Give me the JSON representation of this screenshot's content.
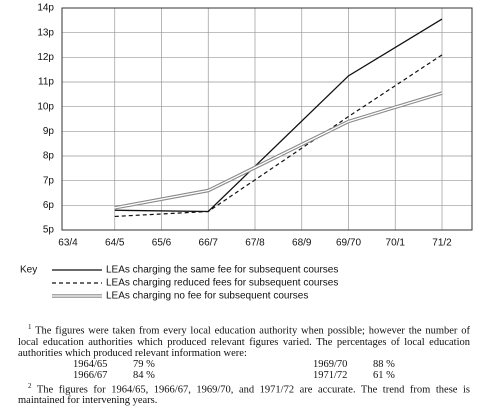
{
  "chart_data": {
    "type": "line",
    "categories": [
      "63/4",
      "64/5",
      "65/6",
      "66/7",
      "67/8",
      "68/9",
      "69/70",
      "70/1",
      "71/2"
    ],
    "ylim": [
      5,
      14
    ],
    "yticks": [
      {
        "value": 5,
        "label": "5p"
      },
      {
        "value": 6,
        "label": "6p"
      },
      {
        "value": 7,
        "label": "7p"
      },
      {
        "value": 8,
        "label": "8p"
      },
      {
        "value": 9,
        "label": "9p"
      },
      {
        "value": 10,
        "label": "10p"
      },
      {
        "value": 11,
        "label": "11p"
      },
      {
        "value": 12,
        "label": "12p"
      },
      {
        "value": 13,
        "label": "13p"
      },
      {
        "value": 14,
        "label": "14p"
      }
    ],
    "grid": true,
    "legend_title": "Key",
    "series": [
      {
        "name": "LEAs charging the same fee for subsequent courses",
        "color": "#111111",
        "style": "solid",
        "x": [
          "64/5",
          "66/7",
          "69/70",
          "71/2"
        ],
        "values": [
          5.8,
          5.75,
          11.25,
          13.55
        ]
      },
      {
        "name": "LEAs charging reduced fees for subsequent courses",
        "color": "#111111",
        "style": "dashed",
        "x": [
          "64/5",
          "66/7",
          "69/70",
          "71/2"
        ],
        "values": [
          5.55,
          5.75,
          9.6,
          12.1
        ]
      },
      {
        "name": "LEAs charging no fee for subsequent courses",
        "color": "#8a8a8a",
        "style": "double",
        "x": [
          "64/5",
          "66/7",
          "69/70",
          "71/2"
        ],
        "values": [
          5.9,
          6.6,
          9.4,
          10.55
        ]
      }
    ]
  },
  "footnotes": [
    {
      "mark": "1",
      "text": "The figures were taken from every local education authority when possible; however the number of local education authorities which produced relevant figures varied.  The percentages of local education authorities which produced relevant information were:"
    },
    {
      "mark": "2",
      "text": "The figures for 1964/65, 1966/67, 1969/70, and 1971/72 are accurate.  The trend from these is maintained for intervening years."
    }
  ],
  "coverage_table": [
    [
      "1964/65",
      "79 %"
    ],
    [
      "1969/70",
      "88 %"
    ],
    [
      "1966/67",
      "84 %"
    ],
    [
      "1971/72",
      "61 %"
    ]
  ]
}
